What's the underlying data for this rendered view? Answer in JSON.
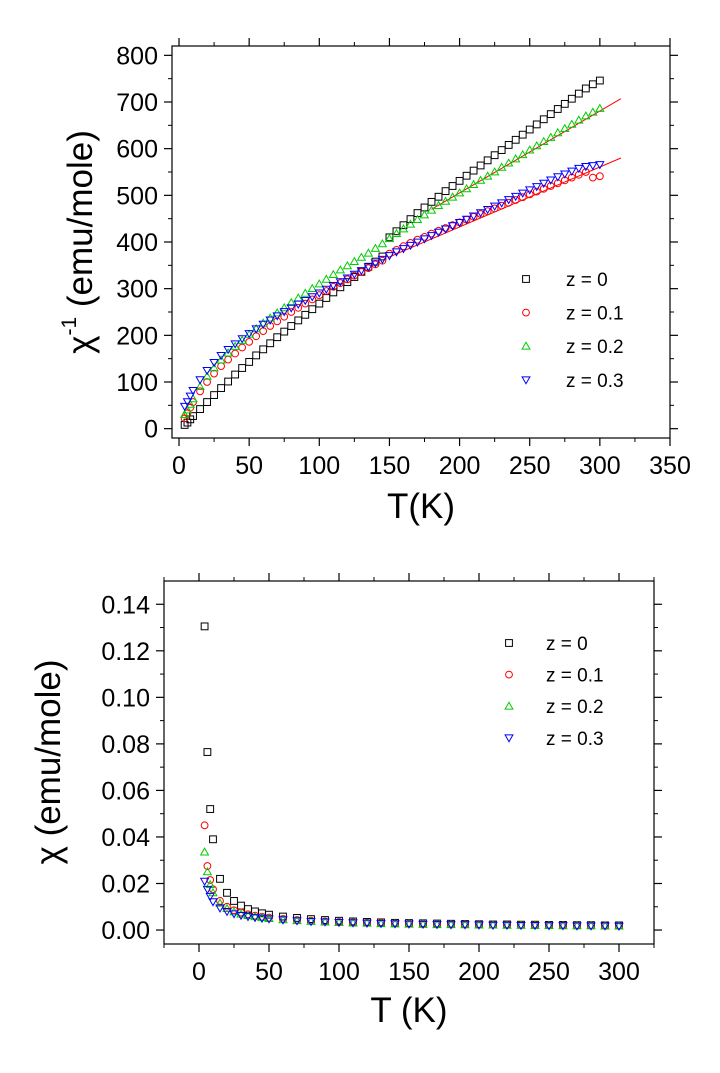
{
  "chart_data": [
    {
      "type": "scatter",
      "title": "",
      "xlabel": "T(K)",
      "ylabel_main": "χ",
      "ylabel_sup": "-1",
      "ylabel_rest": " (emu/mole)",
      "xlim": [
        -5,
        350
      ],
      "ylim": [
        -20,
        820
      ],
      "xticks": [
        0,
        50,
        100,
        150,
        200,
        250,
        300,
        350
      ],
      "yticks": [
        0,
        100,
        200,
        300,
        400,
        500,
        600,
        700,
        800
      ],
      "legend_position": "right",
      "series": [
        {
          "name": "z = 0",
          "color": "#000000",
          "marker": "square",
          "x": [
            4,
            6,
            8,
            10,
            15,
            20,
            25,
            30,
            35,
            40,
            45,
            50,
            55,
            60,
            65,
            70,
            75,
            80,
            85,
            90,
            95,
            100,
            105,
            110,
            115,
            120,
            125,
            130,
            135,
            140,
            145,
            150,
            155,
            160,
            165,
            170,
            175,
            180,
            185,
            190,
            195,
            200,
            205,
            210,
            215,
            220,
            225,
            230,
            235,
            240,
            245,
            250,
            255,
            260,
            265,
            270,
            275,
            280,
            285,
            290,
            295,
            300
          ],
          "y": [
            8,
            13,
            20,
            27,
            42,
            57,
            72,
            87,
            101,
            116,
            130,
            143,
            157,
            170,
            183,
            196,
            208,
            220,
            232,
            244,
            256,
            268,
            280,
            292,
            303,
            314,
            325,
            336,
            347,
            358,
            369,
            410,
            423,
            436,
            449,
            462,
            474,
            486,
            497,
            509,
            520,
            531,
            542,
            553,
            564,
            575,
            586,
            597,
            608,
            619,
            630,
            641,
            652,
            663,
            674,
            685,
            696,
            707,
            718,
            729,
            738,
            746
          ]
        },
        {
          "name": "z = 0.1",
          "color": "#ff0000",
          "marker": "circle",
          "x": [
            4,
            6,
            8,
            10,
            15,
            20,
            25,
            30,
            35,
            40,
            45,
            50,
            55,
            60,
            65,
            70,
            75,
            80,
            85,
            90,
            95,
            100,
            105,
            110,
            115,
            120,
            125,
            130,
            135,
            140,
            145,
            150,
            155,
            160,
            165,
            170,
            175,
            180,
            185,
            190,
            195,
            200,
            205,
            210,
            215,
            220,
            225,
            230,
            235,
            240,
            245,
            250,
            255,
            260,
            265,
            270,
            275,
            280,
            285,
            290,
            295,
            300
          ],
          "y": [
            22,
            33,
            45,
            57,
            80,
            100,
            118,
            134,
            148,
            161,
            174,
            186,
            198,
            209,
            220,
            230,
            240,
            250,
            259,
            268,
            277,
            286,
            295,
            304,
            312,
            320,
            328,
            336,
            344,
            352,
            360,
            375,
            383,
            391,
            398,
            405,
            411,
            418,
            424,
            430,
            436,
            442,
            448,
            454,
            460,
            466,
            472,
            478,
            484,
            490,
            496,
            502,
            508,
            514,
            520,
            526,
            532,
            538,
            544,
            550,
            538,
            541
          ]
        },
        {
          "name": "z = 0.2",
          "color": "#00cc00",
          "marker": "triangle-up",
          "x": [
            4,
            6,
            8,
            10,
            15,
            20,
            25,
            30,
            35,
            40,
            45,
            50,
            55,
            60,
            65,
            70,
            75,
            80,
            85,
            90,
            95,
            100,
            105,
            110,
            115,
            120,
            125,
            130,
            135,
            140,
            145,
            150,
            155,
            160,
            165,
            170,
            175,
            180,
            185,
            190,
            195,
            200,
            205,
            210,
            215,
            220,
            225,
            230,
            235,
            240,
            245,
            250,
            255,
            260,
            265,
            270,
            275,
            280,
            285,
            290,
            295,
            300
          ],
          "y": [
            30,
            40,
            52,
            64,
            90,
            112,
            130,
            147,
            162,
            176,
            189,
            202,
            214,
            226,
            237,
            248,
            259,
            270,
            280,
            290,
            300,
            310,
            320,
            330,
            340,
            349,
            358,
            367,
            376,
            386,
            396,
            407,
            418,
            428,
            438,
            448,
            458,
            468,
            478,
            487,
            496,
            505,
            514,
            523,
            532,
            541,
            550,
            560,
            569,
            578,
            587,
            597,
            606,
            615,
            624,
            634,
            643,
            652,
            661,
            670,
            678,
            686
          ]
        },
        {
          "name": "z = 0.3",
          "color": "#0000ff",
          "marker": "triangle-down",
          "x": [
            4,
            6,
            8,
            10,
            15,
            20,
            25,
            30,
            35,
            40,
            45,
            50,
            55,
            60,
            65,
            70,
            75,
            80,
            85,
            90,
            95,
            100,
            105,
            110,
            115,
            120,
            125,
            130,
            135,
            140,
            145,
            150,
            155,
            160,
            165,
            170,
            175,
            180,
            185,
            190,
            195,
            200,
            205,
            210,
            215,
            220,
            225,
            230,
            235,
            240,
            245,
            250,
            255,
            260,
            265,
            270,
            275,
            280,
            285,
            290,
            295,
            300
          ],
          "y": [
            48,
            58,
            70,
            82,
            105,
            125,
            142,
            157,
            170,
            182,
            193,
            204,
            214,
            224,
            233,
            242,
            251,
            259,
            267,
            275,
            283,
            291,
            299,
            307,
            315,
            323,
            331,
            339,
            347,
            355,
            363,
            371,
            379,
            386,
            393,
            400,
            407,
            414,
            421,
            428,
            435,
            442,
            449,
            456,
            463,
            470,
            477,
            484,
            491,
            498,
            505,
            512,
            519,
            526,
            533,
            540,
            546,
            552,
            558,
            562,
            564,
            566
          ]
        }
      ],
      "fit_lines": [
        {
          "color": "#ff0000",
          "x": [
            180,
            315
          ],
          "y": [
            470,
            707
          ]
        },
        {
          "color": "#ff0000",
          "x": [
            150,
            315
          ],
          "y": [
            368,
            580
          ]
        }
      ]
    },
    {
      "type": "scatter",
      "title": "",
      "xlabel": "T (K)",
      "ylabel": "χ (emu/mole)",
      "xlim": [
        -25,
        325
      ],
      "ylim": [
        -0.006,
        0.15
      ],
      "xticks": [
        0,
        50,
        100,
        150,
        200,
        250,
        300
      ],
      "yticks": [
        0.0,
        0.02,
        0.04,
        0.06,
        0.08,
        0.1,
        0.12,
        0.14
      ],
      "ytick_labels": [
        "0.00",
        "0.02",
        "0.04",
        "0.06",
        "0.08",
        "0.10",
        "0.12",
        "0.14"
      ],
      "legend_position": "top-right",
      "series": [
        {
          "name": "z = 0",
          "color": "#000000",
          "marker": "square",
          "x": [
            4,
            6,
            8,
            10,
            15,
            20,
            25,
            30,
            35,
            40,
            45,
            50,
            60,
            70,
            80,
            90,
            100,
            110,
            120,
            130,
            140,
            150,
            160,
            170,
            180,
            190,
            200,
            210,
            220,
            230,
            240,
            250,
            260,
            270,
            280,
            290,
            300
          ],
          "y": [
            0.1305,
            0.0765,
            0.052,
            0.039,
            0.022,
            0.016,
            0.0125,
            0.0105,
            0.009,
            0.008,
            0.0072,
            0.0066,
            0.0058,
            0.0052,
            0.0047,
            0.0043,
            0.004,
            0.0037,
            0.0035,
            0.0033,
            0.0031,
            0.003,
            0.0029,
            0.0028,
            0.0027,
            0.0026,
            0.0025,
            0.0024,
            0.0024,
            0.0023,
            0.0023,
            0.0022,
            0.0022,
            0.0021,
            0.0021,
            0.002,
            0.002
          ]
        },
        {
          "name": "z = 0.1",
          "color": "#ff0000",
          "marker": "circle",
          "x": [
            4,
            6,
            8,
            10,
            15,
            20,
            25,
            30,
            35,
            40,
            45,
            50,
            60,
            70,
            80,
            90,
            100,
            110,
            120,
            130,
            140,
            150,
            160,
            170,
            180,
            190,
            200,
            210,
            220,
            230,
            240,
            250,
            260,
            270,
            280,
            290,
            300
          ],
          "y": [
            0.045,
            0.0275,
            0.0215,
            0.0175,
            0.0125,
            0.01,
            0.0085,
            0.0075,
            0.0068,
            0.0062,
            0.0057,
            0.0053,
            0.0048,
            0.0043,
            0.004,
            0.0037,
            0.0035,
            0.0033,
            0.0031,
            0.003,
            0.0028,
            0.0027,
            0.0026,
            0.0025,
            0.0024,
            0.0024,
            0.0023,
            0.0022,
            0.0022,
            0.0021,
            0.0021,
            0.002,
            0.002,
            0.0019,
            0.0019,
            0.0019,
            0.0018
          ]
        },
        {
          "name": "z = 0.2",
          "color": "#00cc00",
          "marker": "triangle-up",
          "x": [
            4,
            6,
            8,
            10,
            15,
            20,
            25,
            30,
            35,
            40,
            45,
            50,
            60,
            70,
            80,
            90,
            100,
            110,
            120,
            130,
            140,
            150,
            160,
            170,
            180,
            190,
            200,
            210,
            220,
            230,
            240,
            250,
            260,
            270,
            280,
            290,
            300
          ],
          "y": [
            0.0335,
            0.025,
            0.0195,
            0.016,
            0.0115,
            0.0092,
            0.0078,
            0.0068,
            0.0062,
            0.0057,
            0.0053,
            0.0049,
            0.0044,
            0.004,
            0.0037,
            0.0034,
            0.0032,
            0.003,
            0.0029,
            0.0027,
            0.0026,
            0.0025,
            0.0024,
            0.0023,
            0.0023,
            0.0022,
            0.0021,
            0.0021,
            0.002,
            0.002,
            0.0019,
            0.0019,
            0.0018,
            0.0018,
            0.0018,
            0.0017,
            0.0017
          ]
        },
        {
          "name": "z = 0.3",
          "color": "#0000ff",
          "marker": "triangle-down",
          "x": [
            4,
            6,
            8,
            10,
            15,
            20,
            25,
            30,
            35,
            40,
            45,
            50,
            60,
            70,
            80,
            90,
            100,
            110,
            120,
            130,
            140,
            150,
            160,
            170,
            180,
            190,
            200,
            210,
            220,
            230,
            240,
            250,
            260,
            270,
            280,
            290,
            300
          ],
          "y": [
            0.021,
            0.0175,
            0.0145,
            0.0122,
            0.0095,
            0.008,
            0.007,
            0.0063,
            0.0058,
            0.0054,
            0.0051,
            0.0048,
            0.0044,
            0.004,
            0.0037,
            0.0035,
            0.0033,
            0.0031,
            0.003,
            0.0028,
            0.0027,
            0.0026,
            0.0025,
            0.0024,
            0.0023,
            0.0023,
            0.0022,
            0.0021,
            0.0021,
            0.002,
            0.002,
            0.0019,
            0.0019,
            0.0018,
            0.0018,
            0.0018,
            0.0017
          ]
        }
      ]
    }
  ]
}
